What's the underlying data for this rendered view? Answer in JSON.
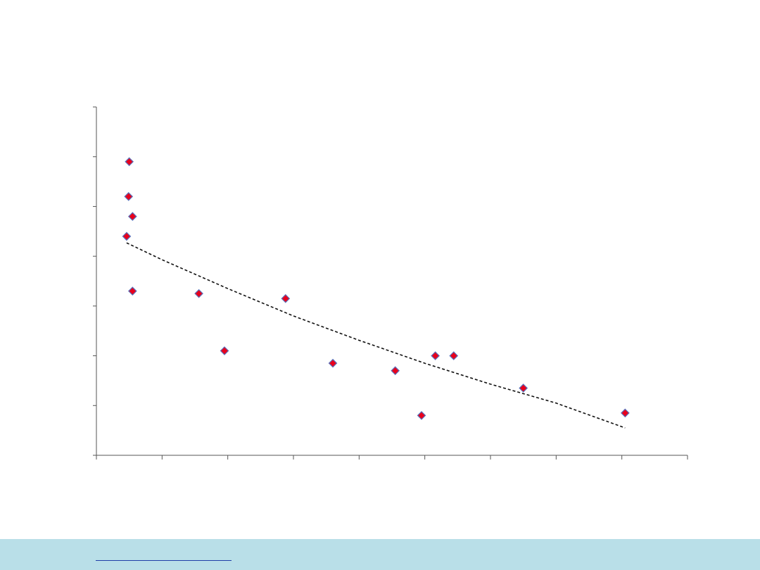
{
  "chart_data": {
    "type": "scatter",
    "title": "",
    "xlabel": "",
    "ylabel": "",
    "xlim": [
      0,
      9
    ],
    "ylim": [
      0,
      7
    ],
    "x_ticks": [
      0,
      1,
      2,
      3,
      4,
      5,
      6,
      7,
      8,
      9
    ],
    "y_ticks": [
      0,
      1,
      2,
      3,
      4,
      5,
      6,
      7
    ],
    "grid": false,
    "legend": "none",
    "marker": {
      "shape": "diamond",
      "fill": "#e8001c",
      "stroke": "#5a6fb8"
    },
    "points": [
      {
        "x": 0.5,
        "y": 5.9
      },
      {
        "x": 0.49,
        "y": 5.2
      },
      {
        "x": 0.55,
        "y": 4.8
      },
      {
        "x": 0.46,
        "y": 4.4
      },
      {
        "x": 0.55,
        "y": 3.3
      },
      {
        "x": 1.56,
        "y": 3.25
      },
      {
        "x": 1.95,
        "y": 2.1
      },
      {
        "x": 2.88,
        "y": 3.15
      },
      {
        "x": 3.6,
        "y": 1.85
      },
      {
        "x": 4.55,
        "y": 1.7
      },
      {
        "x": 4.95,
        "y": 0.8
      },
      {
        "x": 5.16,
        "y": 2.0
      },
      {
        "x": 5.44,
        "y": 2.0
      },
      {
        "x": 6.5,
        "y": 1.35
      },
      {
        "x": 8.05,
        "y": 0.85
      }
    ],
    "trendline": {
      "style": "dashed",
      "color": "#111111",
      "points": [
        {
          "x": 0.46,
          "y": 4.27
        },
        {
          "x": 1.0,
          "y": 3.93
        },
        {
          "x": 2.0,
          "y": 3.35
        },
        {
          "x": 3.0,
          "y": 2.8
        },
        {
          "x": 4.0,
          "y": 2.31
        },
        {
          "x": 5.0,
          "y": 1.85
        },
        {
          "x": 6.0,
          "y": 1.43
        },
        {
          "x": 7.0,
          "y": 1.05
        },
        {
          "x": 8.05,
          "y": 0.55
        }
      ]
    }
  },
  "footer": {
    "background": "#b9dfe8",
    "link_text": ""
  }
}
